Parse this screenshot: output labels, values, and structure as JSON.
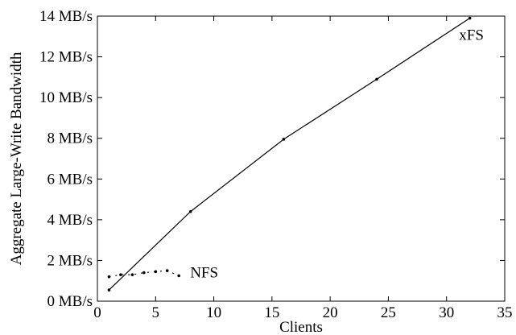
{
  "chart_data": {
    "type": "line",
    "xlabel": "Clients",
    "ylabel": "Aggregate Large-Write Bandwidth",
    "xlim": [
      0,
      35
    ],
    "ylim": [
      0,
      14
    ],
    "x_ticks": [
      0,
      5,
      10,
      15,
      20,
      25,
      30,
      35
    ],
    "y_ticks": [
      {
        "value": 0,
        "label": "0 MB/s"
      },
      {
        "value": 2,
        "label": "2 MB/s"
      },
      {
        "value": 4,
        "label": "4 MB/s"
      },
      {
        "value": 6,
        "label": "6 MB/s"
      },
      {
        "value": 8,
        "label": "8 MB/s"
      },
      {
        "value": 10,
        "label": "10 MB/s"
      },
      {
        "value": 12,
        "label": "12 MB/s"
      },
      {
        "value": 14,
        "label": "14 MB/s"
      }
    ],
    "grid": false,
    "series": [
      {
        "name": "xFS",
        "line_style": "solid",
        "color": "#000000",
        "x": [
          1,
          8,
          16,
          24,
          32
        ],
        "y": [
          0.55,
          4.4,
          7.95,
          10.9,
          13.9
        ]
      },
      {
        "name": "NFS",
        "line_style": "dotted",
        "color": "#000000",
        "x": [
          1,
          2,
          3,
          4,
          5,
          6,
          7
        ],
        "y": [
          1.2,
          1.3,
          1.3,
          1.4,
          1.45,
          1.5,
          1.25
        ]
      }
    ]
  }
}
